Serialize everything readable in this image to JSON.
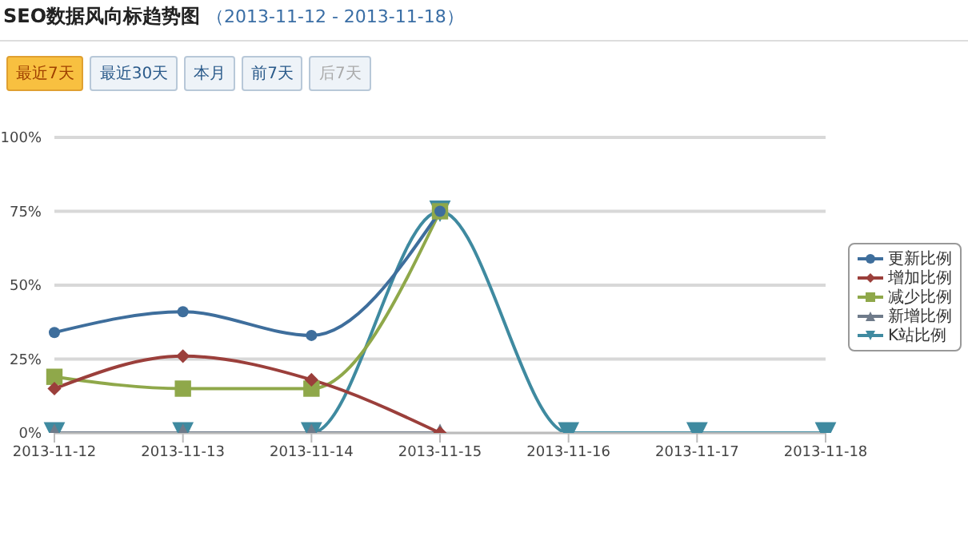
{
  "chart_data": {
    "type": "line",
    "title": "SEO数据风向标趋势图",
    "subtitle": "（2013-11-12 - 2013-11-18）",
    "annotations": [
      "最近7天",
      "最近30天",
      "本月",
      "前7天",
      "后7天"
    ],
    "categories": [
      "2013-11-12",
      "2013-11-13",
      "2013-11-14",
      "2013-11-15",
      "2013-11-16",
      "2013-11-17",
      "2013-11-18"
    ],
    "series": [
      {
        "name": "更新比例",
        "color": "#3e6e9c",
        "marker": "circle",
        "values": [
          34,
          41,
          33,
          75,
          null,
          null,
          null
        ]
      },
      {
        "name": "增加比例",
        "color": "#9b3f3b",
        "marker": "diamond",
        "values": [
          15,
          26,
          18,
          0,
          null,
          null,
          null
        ]
      },
      {
        "name": "减少比例",
        "color": "#8fa84a",
        "marker": "square",
        "values": [
          19,
          15,
          15,
          75,
          null,
          null,
          null
        ]
      },
      {
        "name": "新增比例",
        "color": "#6f7b8a",
        "marker": "triangle",
        "values": [
          0,
          0,
          0,
          0,
          null,
          null,
          null
        ]
      },
      {
        "name": "K站比例",
        "color": "#3f8aa0",
        "marker": "triangle-down",
        "values": [
          0,
          0,
          0,
          75,
          0,
          0,
          0
        ]
      }
    ],
    "ylim": [
      0,
      100
    ],
    "yticks": [
      {
        "value": 0,
        "label": "0%"
      },
      {
        "value": 25,
        "label": "25%"
      },
      {
        "value": 50,
        "label": "50%"
      },
      {
        "value": 75,
        "label": "75%"
      },
      {
        "value": 100,
        "label": "100%"
      }
    ],
    "grid": "y",
    "legend": "right"
  }
}
